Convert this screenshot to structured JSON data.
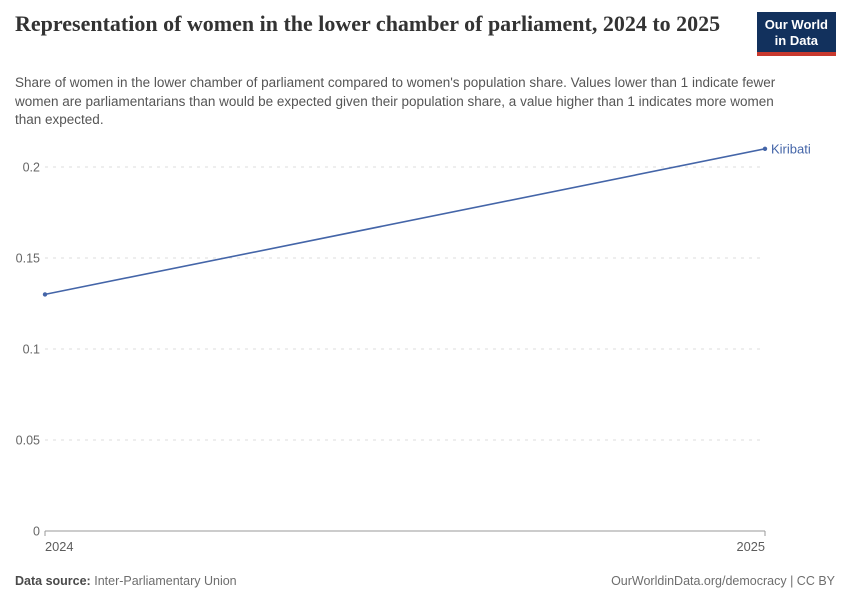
{
  "header": {
    "title": "Representation of women in the lower chamber of parliament, 2024 to 2025",
    "subtitle": "Share of women in the lower chamber of parliament compared to women's population share. Values lower than 1 indicate fewer women are parliamentarians than would be expected given their population share, a value higher than 1 indicates more women than expected.",
    "logo": {
      "line1": "Our World",
      "line2": "in Data"
    }
  },
  "chart_data": {
    "type": "line",
    "title": "Representation of women in the lower chamber of parliament, 2024 to 2025",
    "x": [
      2024,
      2025
    ],
    "xtick_labels": [
      "2024",
      "2025"
    ],
    "series": [
      {
        "name": "Kiribati",
        "values": [
          0.13,
          0.21
        ],
        "color": "#4465a8"
      }
    ],
    "ylim": [
      0,
      0.215
    ],
    "yticks": [
      0,
      0.05,
      0.1,
      0.15,
      0.2
    ],
    "ytick_labels": [
      "0",
      "0.05",
      "0.1",
      "0.15",
      "0.2"
    ],
    "grid": "horizontal-dashed",
    "legend_position": "line-end-label"
  },
  "footer": {
    "source_label": "Data source:",
    "source_value": "Inter-Parliamentary Union",
    "attribution": "OurWorldinData.org/democracy | CC BY"
  },
  "colors": {
    "series_blue": "#4465a8",
    "grid": "#dcdcdc",
    "axis": "#999999",
    "logo_bg": "#12315d",
    "logo_stripe": "#c8392e",
    "title_text": "#333333",
    "subtitle_text": "#555555",
    "footer_text": "#6e6e6e"
  }
}
